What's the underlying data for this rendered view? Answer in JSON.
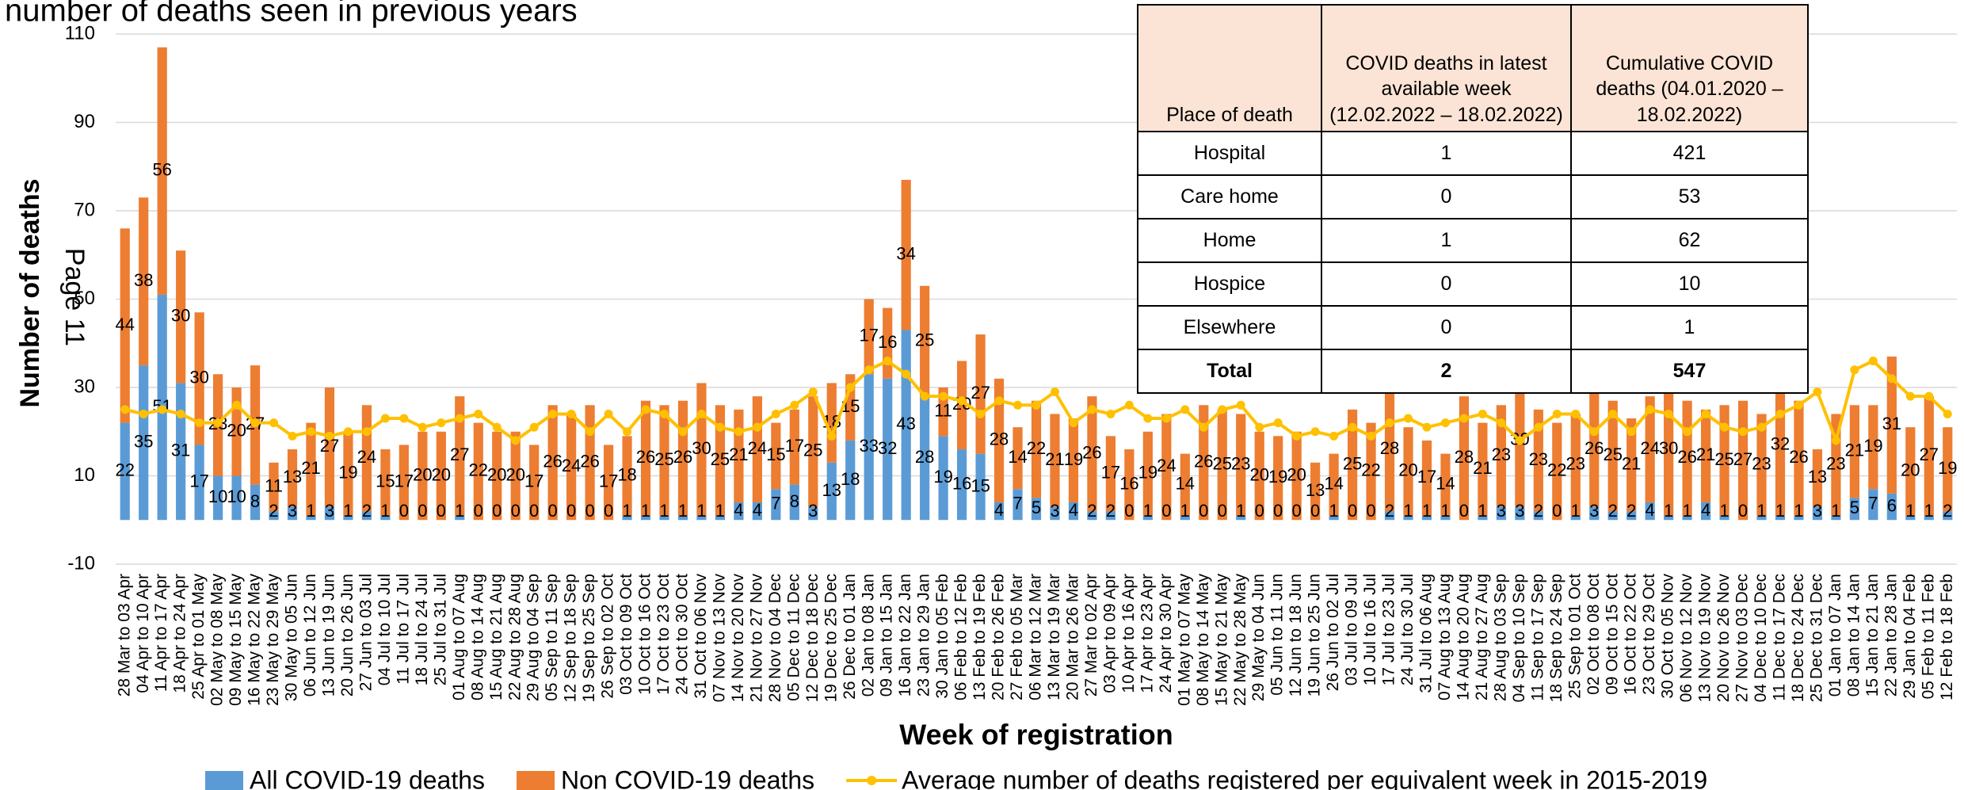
{
  "chart_data": {
    "type": "bar",
    "title": "number of deaths seen in previous years",
    "annotation": "Page 11",
    "x_label": "Week of registration",
    "y_label": "Number of deaths",
    "ylim": [
      -10,
      110
    ],
    "yticks": [
      -10,
      10,
      30,
      50,
      70,
      90,
      110
    ],
    "grid": true,
    "stacked": true,
    "legend": "bottom",
    "categories": [
      "28 Mar to 03 Apr",
      "04 Apr to 10 Apr",
      "11 Apr to 17 Apr",
      "18 Apr to 24 Apr",
      "25 Apr to 01 May",
      "02 May to 08 May",
      "09 May to 15 May",
      "16 May to 22 May",
      "23 May to 29 May",
      "30 May to 05 Jun",
      "06 Jun to 12 Jun",
      "13 Jun to 19 Jun",
      "20 Jun to 26 Jun",
      "27 Jun to 03 Jul",
      "04 Jul to 10 Jul",
      "11 Jul to 17 Jul",
      "18 Jul to 24 Jul",
      "25 Jul to 31 Jul",
      "01 Aug to 07 Aug",
      "08 Aug to 14 Aug",
      "15 Aug to 21 Aug",
      "22 Aug to 28 Aug",
      "29 Aug to 04 Sep",
      "05 Sep to 11 Sep",
      "12 Sep to 18 Sep",
      "19 Sep to 25 Sep",
      "26 Sep to 02 Oct",
      "03 Oct to 09 Oct",
      "10 Oct to 16 Oct",
      "17 Oct to 23 Oct",
      "24 Oct to 30 Oct",
      "31 Oct to 06 Nov",
      "07 Nov to 13 Nov",
      "14 Nov to 20 Nov",
      "21 Nov to 27 Nov",
      "28 Nov to 04 Dec",
      "05 Dec to 11 Dec",
      "12 Dec to 18 Dec",
      "19 Dec to 25 Dec",
      "26 Dec to 01 Jan",
      "02 Jan to 08 Jan",
      "09 Jan to 15 Jan",
      "16 Jan to 22 Jan",
      "23 Jan to 29 Jan",
      "30 Jan to 05 Feb",
      "06 Feb to 12 Feb",
      "13 Feb to 19 Feb",
      "20 Feb to 26 Feb",
      "27 Feb to 05 Mar",
      "06 Mar to 12 Mar",
      "13 Mar to 19 Mar",
      "20 Mar to 26 Mar",
      "27 Mar to 02 Apr",
      "03 Apr to 09 Apr",
      "10 Apr to 16 Apr",
      "17 Apr to 23 Apr",
      "24 Apr to 30 Apr",
      "01 May to 07 May",
      "08 May to 14 May",
      "15 May to 21 May",
      "22 May to 28 May",
      "29 May to 04 Jun",
      "05 Jun to 11 Jun",
      "12 Jun to 18 Jun",
      "19 Jun to 25 Jun",
      "26 Jun to 02 Jul",
      "03 Jul to 09 Jul",
      "10 Jul to 16 Jul",
      "17 Jul to 23 Jul",
      "24 Jul to 30 Jul",
      "31 Jul to 06 Aug",
      "07 Aug to 13 Aug",
      "14 Aug to 20 Aug",
      "21 Aug to 27 Aug",
      "28 Aug to 03 Sep",
      "04 Sep to 10 Sep",
      "11 Sep to 17 Sep",
      "18 Sep to 24 Sep",
      "25 Sep to 01 Oct",
      "02 Oct to 08 Oct",
      "09 Oct to 15 Oct",
      "16 Oct to 22 Oct",
      "23 Oct to 29 Oct",
      "30 Oct to 05 Nov",
      "06 Nov to 12 Nov",
      "13 Nov to 19 Nov",
      "20 Nov to 26 Nov",
      "27 Nov to 03 Dec",
      "04 Dec to 10 Dec",
      "11 Dec to 17 Dec",
      "18 Dec to 24 Dec",
      "25 Dec to 31 Dec",
      "01 Jan to 07 Jan",
      "08 Jan to 14 Jan",
      "15 Jan to 21 Jan",
      "22 Jan to 28 Jan",
      "29 Jan to 04 Feb",
      "05 Feb to 11 Feb",
      "12 Feb to 18 Feb"
    ],
    "series": [
      {
        "name": "All COVID-19 deaths",
        "color": "#5b9bd5",
        "kind": "bar",
        "values": [
          22,
          35,
          51,
          31,
          17,
          10,
          10,
          8,
          2,
          3,
          1,
          3,
          1,
          2,
          1,
          0,
          0,
          0,
          1,
          0,
          0,
          0,
          0,
          0,
          0,
          0,
          0,
          1,
          1,
          1,
          1,
          1,
          1,
          4,
          4,
          7,
          8,
          3,
          13,
          18,
          33,
          32,
          43,
          28,
          19,
          16,
          15,
          4,
          7,
          5,
          3,
          4,
          2,
          2,
          0,
          1,
          0,
          1,
          0,
          0,
          1,
          0,
          0,
          0,
          0,
          1,
          0,
          0,
          2,
          1,
          1,
          1,
          0,
          1,
          3,
          3,
          2,
          0,
          1,
          3,
          2,
          2,
          4,
          1,
          1,
          4,
          1,
          0,
          1,
          1,
          1,
          3,
          1,
          5,
          7,
          6,
          1,
          1,
          2
        ]
      },
      {
        "name": "Non COVID-19 deaths",
        "color": "#ed7d31",
        "kind": "bar",
        "values": [
          44,
          38,
          56,
          30,
          30,
          23,
          20,
          27,
          11,
          13,
          21,
          27,
          19,
          24,
          15,
          17,
          20,
          20,
          27,
          22,
          20,
          20,
          17,
          26,
          24,
          26,
          17,
          18,
          26,
          25,
          26,
          30,
          25,
          21,
          24,
          15,
          17,
          25,
          18,
          15,
          17,
          16,
          34,
          25,
          11,
          20,
          27,
          28,
          14,
          22,
          21,
          19,
          26,
          17,
          16,
          19,
          24,
          14,
          26,
          25,
          23,
          20,
          19,
          20,
          13,
          14,
          25,
          22,
          28,
          20,
          17,
          14,
          28,
          21,
          23,
          30,
          23,
          22,
          23,
          26,
          25,
          21,
          24,
          30,
          26,
          21,
          25,
          27,
          23,
          32,
          26,
          13,
          23,
          21,
          19,
          31,
          20,
          27,
          19
        ]
      },
      {
        "name": "Average number of deaths registered per equivalent week in 2015-2019",
        "color": "#ffc000",
        "kind": "line",
        "values": [
          25,
          24,
          25,
          24,
          22,
          22,
          26,
          22,
          22,
          19,
          20,
          19,
          20,
          20,
          23,
          23,
          21,
          22,
          23,
          24,
          21,
          18,
          21,
          24,
          24,
          20,
          24,
          20,
          25,
          24,
          20,
          24,
          21,
          20,
          21,
          24,
          26,
          29,
          19,
          30,
          34,
          36,
          33,
          28,
          28,
          27,
          24,
          27,
          26,
          26,
          29,
          22,
          25,
          24,
          26,
          23,
          23,
          25,
          21,
          25,
          26,
          21,
          22,
          19,
          20,
          19,
          21,
          19,
          22,
          23,
          21,
          22,
          23,
          24,
          22,
          18,
          21,
          24,
          24,
          20,
          24,
          20,
          25,
          24,
          20,
          24,
          21,
          20,
          21,
          24,
          26,
          29,
          18,
          34,
          36,
          32,
          28,
          28,
          24
        ]
      }
    ]
  },
  "table": {
    "header": [
      "Place of death",
      "COVID deaths in latest available week (12.02.2022 – 18.02.2022)",
      "Cumulative COVID deaths (04.01.2020 – 18.02.2022)"
    ],
    "rows": [
      [
        "Hospital",
        1,
        421
      ],
      [
        "Care home",
        0,
        53
      ],
      [
        "Home",
        1,
        62
      ],
      [
        "Hospice",
        0,
        10
      ],
      [
        "Elsewhere",
        0,
        1
      ],
      [
        "Total",
        2,
        547
      ]
    ]
  }
}
